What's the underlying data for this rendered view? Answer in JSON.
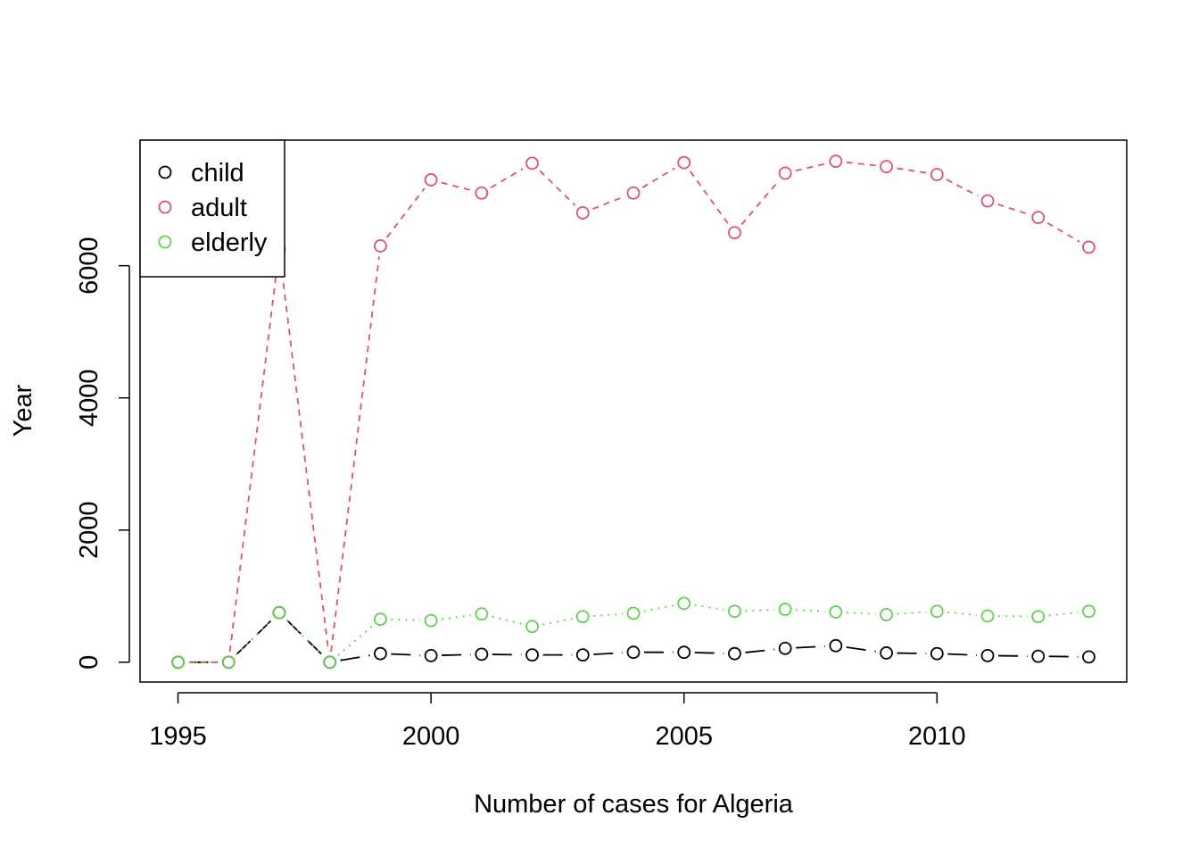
{
  "chart_data": {
    "type": "line",
    "title": "",
    "xlabel": "Number of cases for Algeria",
    "ylabel": "Year",
    "xlim": [
      1994.25,
      2013.75
    ],
    "ylim": [
      -300,
      7900
    ],
    "xticks": [
      1995,
      2000,
      2005,
      2010
    ],
    "yticks": [
      0,
      2000,
      4000,
      6000
    ],
    "grid": false,
    "legend_position": "top-left",
    "x": [
      1995,
      1996,
      1997,
      1998,
      1999,
      2000,
      2001,
      2002,
      2003,
      2004,
      2005,
      2006,
      2007,
      2008,
      2009,
      2010,
      2011,
      2012,
      2013
    ],
    "series": [
      {
        "name": "child",
        "color": "#000000",
        "dash": "long",
        "values": [
          0,
          0,
          750,
          0,
          130,
          100,
          120,
          110,
          110,
          150,
          150,
          130,
          210,
          250,
          140,
          130,
          100,
          90,
          80
        ]
      },
      {
        "name": "adult",
        "color": "#DF536B",
        "dash": "short",
        "values": [
          0,
          0,
          6250,
          0,
          6300,
          7300,
          7100,
          7550,
          6800,
          7100,
          7560,
          6500,
          7400,
          7580,
          7500,
          7380,
          6980,
          6730,
          6280
        ]
      },
      {
        "name": "elderly",
        "color": "#61D04F",
        "dash": "dot",
        "values": [
          0,
          0,
          750,
          0,
          650,
          630,
          730,
          540,
          690,
          740,
          890,
          770,
          800,
          760,
          720,
          770,
          700,
          690,
          770
        ]
      }
    ]
  }
}
